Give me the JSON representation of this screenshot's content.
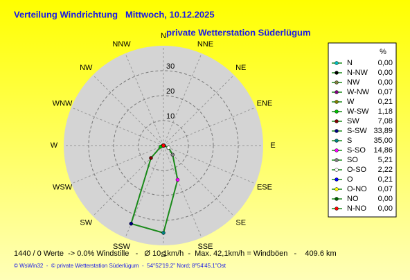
{
  "chart_data": {
    "type": "radar",
    "title": "Verteilung Windrichtung   Mittwoch, 10.12.2025",
    "subtitle": "private Wetterstation Süderlügum",
    "legend_header": "%",
    "categories": [
      "N",
      "N-NW",
      "NW",
      "W-NW",
      "W",
      "W-SW",
      "SW",
      "S-SW",
      "S",
      "S-SO",
      "SO",
      "O-SO",
      "O",
      "O-NO",
      "NO",
      "N-NO"
    ],
    "values": [
      0,
      0,
      0,
      0.07,
      0.21,
      1.18,
      7.08,
      33.89,
      35,
      14.86,
      5.21,
      2.22,
      0.21,
      0.07,
      0,
      0
    ],
    "value_labels": [
      "0,00",
      "0,00",
      "0,00",
      "0,07",
      "0,21",
      "1,18",
      "7,08",
      "33,89",
      "35,00",
      "14,86",
      "5,21",
      "2,22",
      "0,21",
      "0,07",
      "0,00",
      "0,00"
    ],
    "colors": [
      "#00c0c0",
      "#000000",
      "#808040",
      "#800080",
      "#808000",
      "#00c000",
      "#800000",
      "#000080",
      "#008080",
      "#ff00ff",
      "#808080",
      "#ffffff",
      "#0000ff",
      "#ffff00",
      "#006000",
      "#ff0000"
    ],
    "line_color": "#1a8a1a",
    "direction_labels": [
      "N",
      "NNE",
      "NE",
      "ENE",
      "E",
      "ESE",
      "SE",
      "SSE",
      "S",
      "SSW",
      "SW",
      "WSW",
      "W",
      "WNW",
      "NW",
      "NNW"
    ],
    "rlim": [
      0,
      40
    ],
    "rticks": [
      10,
      20,
      30
    ]
  },
  "footer": {
    "stats": "1440 / 0 Werte  -> 0.0% Windstille   -   Ø 10,1km/h  -  Max. 42,1km/h = Windböen   -    409.6 km",
    "copyright": "© WsWin32  -  © private Wetterstation Süderlügum  -  54°52'19.2\" Nord; 8°54'45.1\"Ost"
  }
}
